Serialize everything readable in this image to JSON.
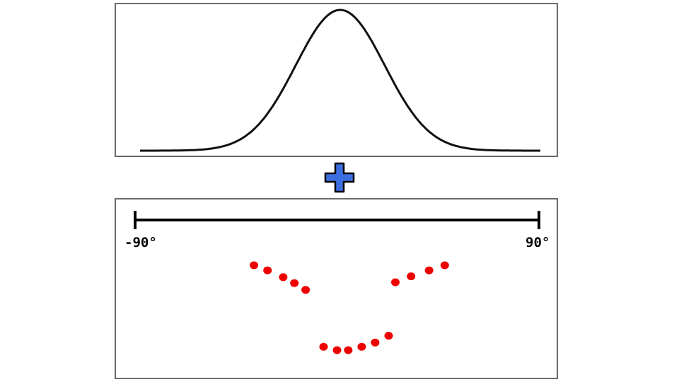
{
  "top_panel": {
    "curve": {
      "type": "gaussian",
      "mean": 0,
      "sigma": 1,
      "x_range": [
        -4.5,
        4.5
      ],
      "color": "#111111"
    }
  },
  "operator": {
    "symbol": "plus-icon",
    "fill": "#3b6fe0",
    "stroke": "#000000"
  },
  "bottom_panel": {
    "scale": {
      "min_label": "-90°",
      "max_label": "90°",
      "min": -90,
      "max": 90,
      "color": "#000000"
    },
    "dot_color": "#ee0000",
    "dots": [
      {
        "x": -37,
        "y": 0.0
      },
      {
        "x": -31,
        "y": 0.06
      },
      {
        "x": -24,
        "y": 0.14
      },
      {
        "x": -19,
        "y": 0.21
      },
      {
        "x": -14,
        "y": 0.29
      },
      {
        "x": 26,
        "y": 0.2
      },
      {
        "x": 33,
        "y": 0.13
      },
      {
        "x": 41,
        "y": 0.06
      },
      {
        "x": 48,
        "y": 0.0
      },
      {
        "x": -6,
        "y": 0.96
      },
      {
        "x": 0,
        "y": 1.0
      },
      {
        "x": 5,
        "y": 1.0
      },
      {
        "x": 11,
        "y": 0.96
      },
      {
        "x": 17,
        "y": 0.91
      },
      {
        "x": 23,
        "y": 0.83
      }
    ]
  }
}
